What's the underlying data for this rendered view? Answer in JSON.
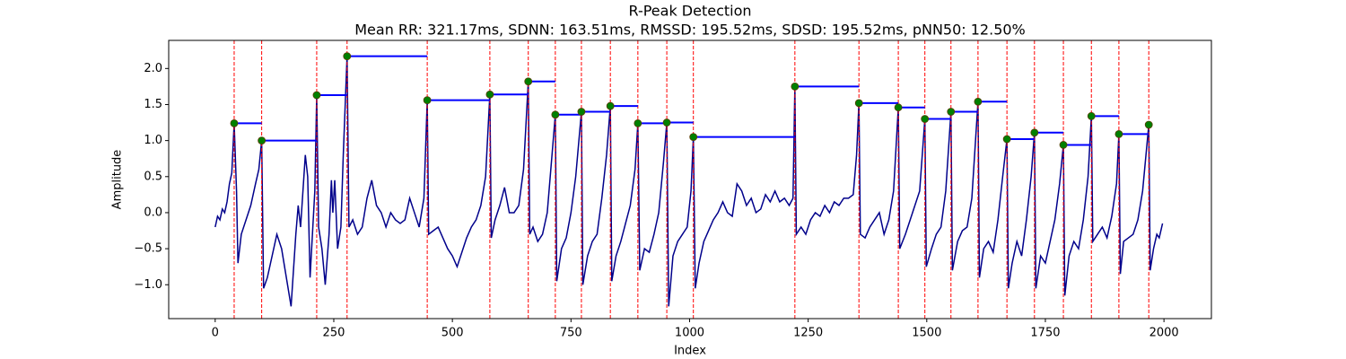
{
  "chart_data": {
    "type": "line",
    "title": "R-Peak Detection",
    "subtitle": "Mean RR: 321.17ms, SDNN: 163.51ms, RMSSD: 195.52ms, SDSD: 195.52ms, pNN50: 12.50%",
    "xlabel": "Index",
    "ylabel": "Amplitude",
    "xlim": [
      -98,
      2100
    ],
    "ylim": [
      -1.47,
      2.39
    ],
    "xticks": [
      0,
      250,
      500,
      750,
      1000,
      1250,
      1500,
      1750,
      2000
    ],
    "yticks": [
      {
        "value": -1,
        "label": "−1.0"
      },
      {
        "value": -0.5,
        "label": "−0.5"
      },
      {
        "value": 0,
        "label": "0.0"
      },
      {
        "value": 0.5,
        "label": "0.5"
      },
      {
        "value": 1,
        "label": "1.0"
      },
      {
        "value": 1.5,
        "label": "1.5"
      },
      {
        "value": 2,
        "label": "2.0"
      }
    ],
    "series": [
      {
        "color": "#00008b",
        "x": [
          0,
          5,
          10,
          15,
          20,
          25,
          30,
          35,
          40,
          45,
          48,
          55,
          65,
          75,
          85,
          92,
          98,
          102,
          110,
          120,
          130,
          140,
          150,
          160,
          165,
          170,
          175,
          180,
          185,
          190,
          195,
          200,
          205,
          210,
          214,
          218,
          225,
          232,
          240,
          245,
          248,
          252,
          258,
          265,
          270,
          278,
          282,
          290,
          300,
          310,
          320,
          330,
          340,
          350,
          360,
          370,
          380,
          390,
          400,
          410,
          420,
          430,
          440,
          447,
          450,
          460,
          470,
          480,
          490,
          500,
          510,
          520,
          530,
          540,
          550,
          560,
          570,
          579,
          582,
          590,
          600,
          610,
          620,
          630,
          640,
          650,
          660,
          663,
          670,
          680,
          690,
          700,
          710,
          717,
          720,
          730,
          740,
          750,
          760,
          772,
          775,
          785,
          795,
          805,
          815,
          825,
          833,
          836,
          845,
          855,
          865,
          875,
          885,
          891,
          895,
          905,
          915,
          925,
          935,
          945,
          952,
          956,
          965,
          975,
          985,
          995,
          1003,
          1008,
          1012,
          1020,
          1030,
          1040,
          1050,
          1060,
          1070,
          1080,
          1090,
          1100,
          1110,
          1120,
          1130,
          1140,
          1150,
          1160,
          1170,
          1180,
          1190,
          1200,
          1210,
          1218,
          1222,
          1225,
          1235,
          1245,
          1255,
          1265,
          1275,
          1285,
          1295,
          1305,
          1315,
          1325,
          1335,
          1345,
          1352,
          1357,
          1360,
          1370,
          1380,
          1390,
          1400,
          1410,
          1420,
          1430,
          1440,
          1443,
          1455,
          1465,
          1475,
          1485,
          1496,
          1499,
          1510,
          1520,
          1530,
          1540,
          1551,
          1554,
          1565,
          1575,
          1585,
          1595,
          1608,
          1611,
          1620,
          1630,
          1640,
          1650,
          1660,
          1669,
          1672,
          1680,
          1690,
          1700,
          1710,
          1720,
          1727,
          1730,
          1740,
          1750,
          1760,
          1770,
          1780,
          1788,
          1791,
          1800,
          1810,
          1820,
          1830,
          1840,
          1847,
          1850,
          1860,
          1870,
          1880,
          1890,
          1900,
          1905,
          1908,
          1915,
          1925,
          1935,
          1945,
          1955,
          1968,
          1971,
          1978,
          1985,
          1990,
          1997
        ],
        "values": [
          -0.2,
          -0.05,
          -0.1,
          0.05,
          0.0,
          0.15,
          0.4,
          0.55,
          1.24,
          0.3,
          -0.7,
          -0.3,
          -0.1,
          0.1,
          0.4,
          0.6,
          1.0,
          -1.05,
          -0.9,
          -0.6,
          -0.3,
          -0.5,
          -0.9,
          -1.3,
          -0.8,
          -0.3,
          0.1,
          -0.2,
          0.3,
          0.8,
          0.5,
          -0.9,
          -0.3,
          0.3,
          1.63,
          -0.2,
          -0.5,
          -1.0,
          -0.3,
          0.45,
          0.0,
          0.45,
          -0.5,
          -0.2,
          0.8,
          2.17,
          -0.2,
          -0.1,
          -0.3,
          -0.2,
          0.2,
          0.45,
          0.1,
          0.0,
          -0.2,
          0.0,
          -0.1,
          -0.15,
          -0.1,
          0.2,
          0.0,
          -0.2,
          0.2,
          1.56,
          -0.3,
          -0.25,
          -0.2,
          -0.35,
          -0.5,
          -0.6,
          -0.75,
          -0.55,
          -0.35,
          -0.2,
          -0.1,
          0.1,
          0.5,
          1.64,
          -0.35,
          -0.1,
          0.1,
          0.35,
          0.0,
          0.0,
          0.1,
          0.6,
          1.82,
          -0.3,
          -0.2,
          -0.4,
          -0.3,
          0.0,
          0.8,
          1.36,
          -0.95,
          -0.5,
          -0.35,
          0.0,
          0.5,
          1.4,
          -1.0,
          -0.6,
          -0.4,
          -0.3,
          0.2,
          0.8,
          1.48,
          -0.95,
          -0.6,
          -0.4,
          -0.15,
          0.1,
          0.6,
          1.24,
          -0.8,
          -0.5,
          -0.55,
          -0.3,
          0.0,
          0.7,
          1.25,
          -1.3,
          -0.6,
          -0.4,
          -0.3,
          -0.2,
          0.3,
          1.05,
          -1.05,
          -0.7,
          -0.4,
          -0.25,
          -0.1,
          0.0,
          0.15,
          0.0,
          -0.05,
          0.4,
          0.3,
          0.1,
          0.2,
          0.0,
          0.05,
          0.25,
          0.15,
          0.3,
          0.15,
          0.2,
          0.1,
          0.2,
          1.75,
          -0.3,
          -0.2,
          -0.3,
          -0.1,
          0.0,
          -0.05,
          0.1,
          0.0,
          0.15,
          0.1,
          0.2,
          0.2,
          0.25,
          0.8,
          1.52,
          -0.3,
          -0.35,
          -0.2,
          -0.1,
          0.0,
          -0.3,
          -0.1,
          0.3,
          1.46,
          -0.5,
          -0.3,
          -0.1,
          0.1,
          0.3,
          1.3,
          -0.75,
          -0.5,
          -0.3,
          -0.2,
          0.3,
          1.4,
          -0.8,
          -0.4,
          -0.25,
          -0.2,
          0.2,
          1.54,
          -0.9,
          -0.5,
          -0.4,
          -0.55,
          -0.1,
          0.5,
          1.02,
          -1.05,
          -0.7,
          -0.4,
          -0.6,
          -0.1,
          0.5,
          1.11,
          -1.05,
          -0.6,
          -0.7,
          -0.4,
          -0.1,
          0.4,
          0.94,
          -1.15,
          -0.6,
          -0.4,
          -0.5,
          -0.1,
          0.5,
          1.34,
          -0.4,
          -0.3,
          -0.2,
          -0.35,
          -0.05,
          0.4,
          1.09,
          -0.85,
          -0.4,
          -0.35,
          -0.3,
          -0.1,
          0.3,
          1.22,
          -0.8,
          -0.5,
          -0.3,
          -0.35,
          -0.15
        ]
      }
    ],
    "peaks": {
      "color": "#008000",
      "line_color": "#ff0000",
      "interval_color": "#0000ff",
      "x": [
        40,
        98,
        214,
        278,
        447,
        579,
        660,
        717,
        772,
        833,
        891,
        952,
        1008,
        1222,
        1357,
        1440,
        1496,
        1551,
        1608,
        1669,
        1727,
        1788,
        1847,
        1905,
        1968
      ],
      "values": [
        1.24,
        1.0,
        1.63,
        2.17,
        1.56,
        1.64,
        1.82,
        1.36,
        1.4,
        1.48,
        1.24,
        1.25,
        1.05,
        1.75,
        1.52,
        1.46,
        1.3,
        1.4,
        1.54,
        1.02,
        1.11,
        0.94,
        1.34,
        1.09,
        1.22
      ]
    }
  }
}
